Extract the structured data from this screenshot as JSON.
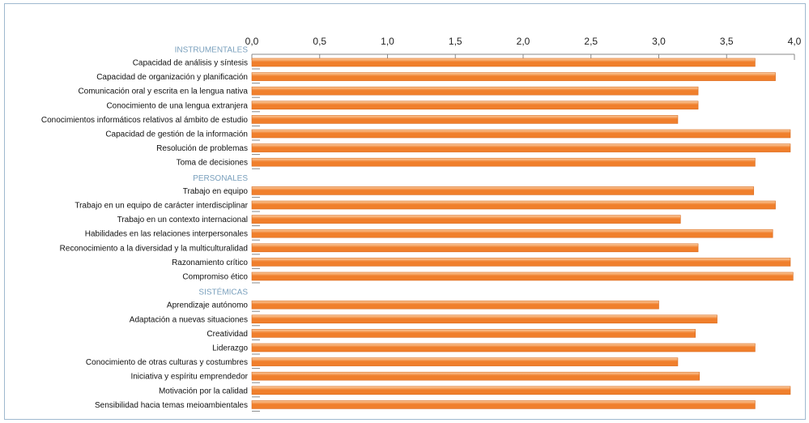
{
  "chart_data": {
    "type": "bar",
    "orientation": "horizontal",
    "xlim": [
      0,
      4.0
    ],
    "ticks": [
      "0,0",
      "0,5",
      "1,0",
      "1,5",
      "2,0",
      "2,5",
      "3,0",
      "3,5",
      "4,0"
    ],
    "tick_values": [
      0,
      0.5,
      1.0,
      1.5,
      2.0,
      2.5,
      3.0,
      3.5,
      4.0
    ],
    "colors": {
      "bar": "#f07f2c",
      "bar_light": "#fbd0a6",
      "section": "#7aa0bd",
      "axis": "#888888"
    },
    "groups": [
      {
        "name": "INSTRUMENTALES",
        "items": [
          {
            "label": "Capacidad de análisis y síntesis",
            "value": 3.71
          },
          {
            "label": "Capacidad de organización y planificación",
            "value": 3.86
          },
          {
            "label": "Comunicación oral y escrita en la lengua nativa",
            "value": 3.29
          },
          {
            "label": "Conocimiento de una lengua extranjera",
            "value": 3.29
          },
          {
            "label": "Conocimientos informáticos relativos al ámbito de estudio",
            "value": 3.14
          },
          {
            "label": "Capacidad de gestión de la información",
            "value": 3.97
          },
          {
            "label": "Resolución de problemas",
            "value": 3.97
          },
          {
            "label": "Toma de decisiones",
            "value": 3.71
          }
        ]
      },
      {
        "name": "PERSONALES",
        "items": [
          {
            "label": "Trabajo en equipo",
            "value": 3.7
          },
          {
            "label": "Trabajo en un equipo de carácter interdisciplinar",
            "value": 3.86
          },
          {
            "label": "Trabajo en un contexto internacional",
            "value": 3.16
          },
          {
            "label": "Habilidades en las relaciones interpersonales",
            "value": 3.84
          },
          {
            "label": "Reconocimiento a la diversidad y la multiculturalidad",
            "value": 3.29
          },
          {
            "label": "Razonamiento crítico",
            "value": 3.97
          },
          {
            "label": "Compromiso ético",
            "value": 3.99
          }
        ]
      },
      {
        "name": "SISTÉMICAS",
        "items": [
          {
            "label": "Aprendizaje autónomo",
            "value": 3.0
          },
          {
            "label": "Adaptación a nuevas situaciones",
            "value": 3.43
          },
          {
            "label": "Creatividad",
            "value": 3.27
          },
          {
            "label": "Liderazgo",
            "value": 3.71
          },
          {
            "label": "Conocimiento de otras culturas y costumbres",
            "value": 3.14
          },
          {
            "label": "Iniciativa y espíritu emprendedor",
            "value": 3.3
          },
          {
            "label": "Motivación por la calidad",
            "value": 3.97
          },
          {
            "label": "Sensibilidad hacia temas meioambientales",
            "value": 3.71
          }
        ]
      }
    ]
  }
}
